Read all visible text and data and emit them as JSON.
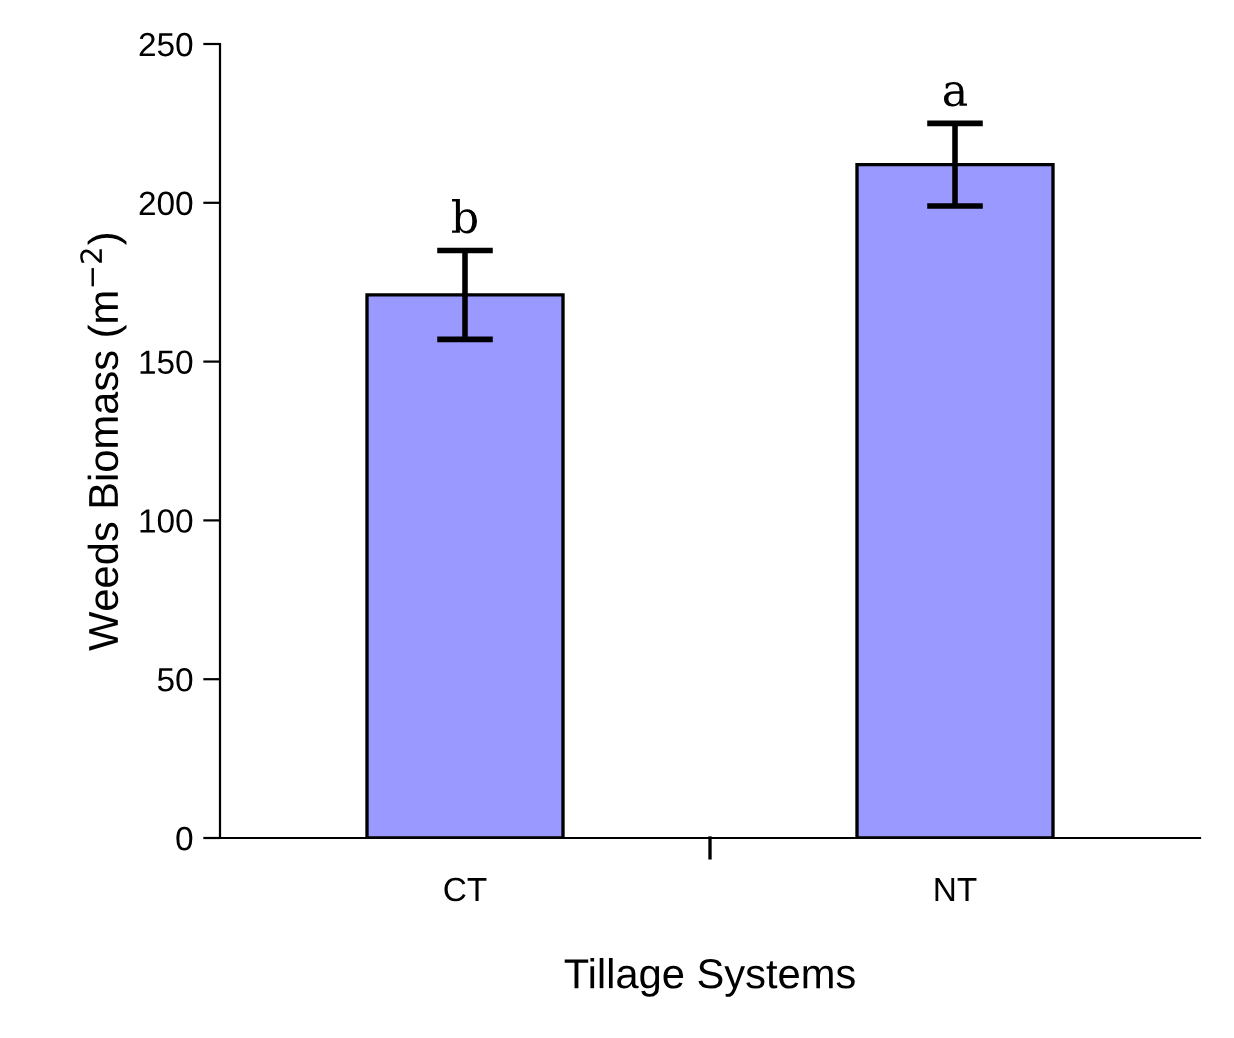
{
  "chart_data": {
    "type": "bar",
    "xlabel": "Tillage Systems",
    "ylabel": "Weeds Biomass (m$^{−2}$)",
    "categories": [
      "CT",
      "NT"
    ],
    "series": [
      {
        "color": "#9999ff",
        "values": [
          171,
          212
        ],
        "errors": [
          14,
          13
        ]
      }
    ],
    "ylim": [
      0,
      250
    ],
    "yticks": [
      0,
      50,
      100,
      150,
      200,
      250
    ],
    "annotations": [
      "b",
      "a"
    ],
    "grid": false,
    "legend": false
  }
}
